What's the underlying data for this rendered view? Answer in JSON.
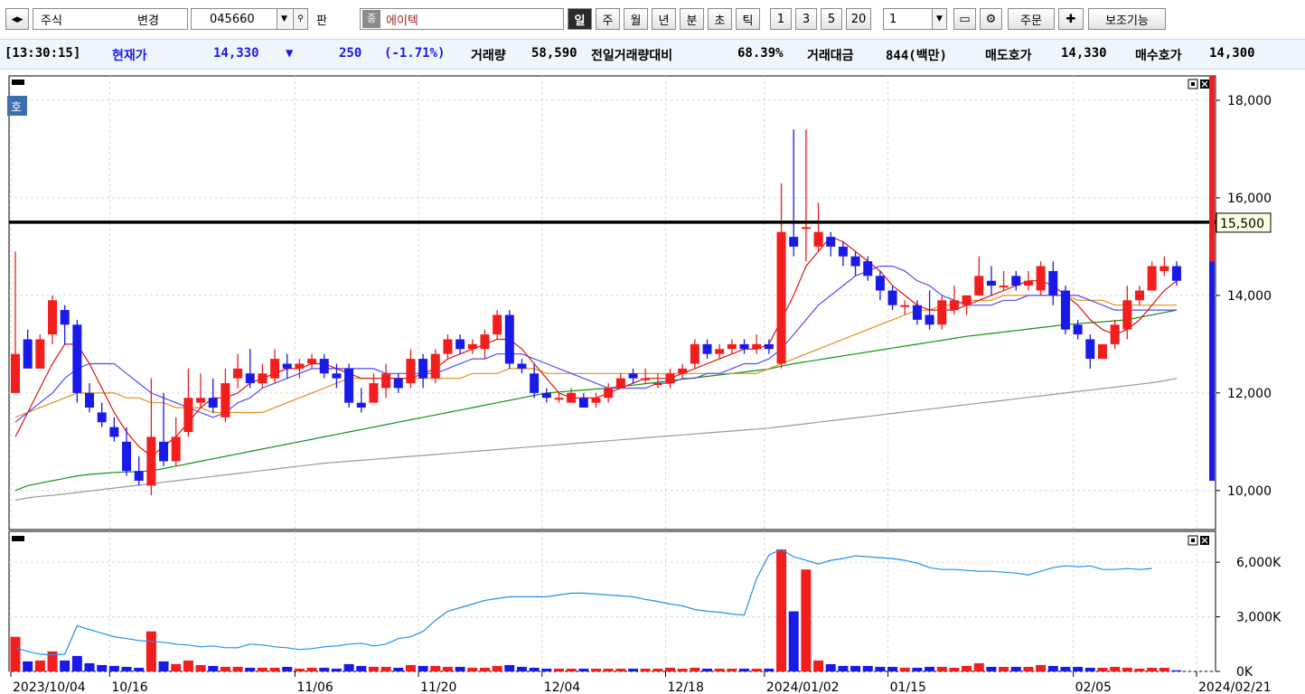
{
  "toolbar": {
    "market_select": "주식",
    "change_label": "변경",
    "code_value": "045660",
    "gwan_label": "판",
    "jong_icon_label": "종",
    "stock_name": "에이텍",
    "period_buttons": [
      "일",
      "주",
      "월",
      "년",
      "분",
      "초",
      "틱"
    ],
    "active_period": "일",
    "interval_buttons": [
      "1",
      "3",
      "5",
      "20"
    ],
    "interval_value": "1",
    "order_label": "주문",
    "aux_label": "보조기능"
  },
  "info": {
    "time": "[13:30:15]",
    "price_label": "현재가",
    "price": "14,330",
    "arrow": "▼",
    "change": "250",
    "change_pct": "(-1.71%)",
    "volume_label": "거래량",
    "volume": "58,590",
    "vol_ratio_label": "전일거래량대비",
    "vol_ratio": "68.39%",
    "amount_label": "거래대금",
    "amount": "844(백만)",
    "ask_label": "매도호가",
    "ask": "14,330",
    "bid_label": "매수호가",
    "bid": "14,300"
  },
  "colors": {
    "up": "#f21d1d",
    "down": "#1a1ae8",
    "ma5": "#e01010",
    "ma10": "#4d4df5",
    "ma20": "#e0901a",
    "ma60": "#159015",
    "ma120": "#9a9a9a",
    "volume_ma": "#1e90e8"
  },
  "chart_data": {
    "type": "candlestick",
    "x_labels": [
      "2023/10/04",
      "10/16",
      "11/06",
      "11/20",
      "12/04",
      "12/18",
      "2024/01/02",
      "01/15",
      "02/05",
      "2024/02/21"
    ],
    "price_axis": {
      "ticks": [
        "10,000",
        "12,000",
        "14,000",
        "16,000",
        "18,000"
      ],
      "range": [
        9200,
        18500
      ]
    },
    "horizontal_line": {
      "value": 15500,
      "label": "15,500"
    },
    "price_panel_tag": "호",
    "volume_axis": {
      "ticks": [
        "0K",
        "3,000K",
        "6,000K"
      ],
      "range": [
        0,
        7000
      ]
    },
    "candles": [
      [
        12,
        12.8,
        14.9,
        12.8,
        1.9
      ],
      [
        13.1,
        12.5,
        13.3,
        12.5,
        0.55
      ],
      [
        12.5,
        13.1,
        13.2,
        12.5,
        0.6
      ],
      [
        13.2,
        13.9,
        14,
        13,
        1.1
      ],
      [
        13.7,
        13.4,
        13.8,
        13,
        0.6
      ],
      [
        13.4,
        12,
        13.5,
        11.8,
        0.85
      ],
      [
        12,
        11.7,
        12.2,
        11.6,
        0.45
      ],
      [
        11.6,
        11.4,
        11.8,
        11.3,
        0.35
      ],
      [
        11.3,
        11.1,
        11.5,
        11,
        0.3
      ],
      [
        11,
        10.4,
        11.3,
        10.3,
        0.25
      ],
      [
        10.4,
        10.2,
        10.7,
        10.1,
        0.2
      ],
      [
        10.1,
        11.1,
        12.3,
        9.9,
        2.2
      ],
      [
        11,
        10.6,
        12,
        10.5,
        0.55
      ],
      [
        10.6,
        11.1,
        11.5,
        10.5,
        0.4
      ],
      [
        11.2,
        11.9,
        12.5,
        11.1,
        0.6
      ],
      [
        11.8,
        11.9,
        12.4,
        11.7,
        0.35
      ],
      [
        11.9,
        11.7,
        12.3,
        11.6,
        0.3
      ],
      [
        11.5,
        12.2,
        12.5,
        11.4,
        0.25
      ],
      [
        12.3,
        12.5,
        12.8,
        12.1,
        0.25
      ],
      [
        12.4,
        12.2,
        12.9,
        12.1,
        0.2
      ],
      [
        12.2,
        12.4,
        12.6,
        12.1,
        0.2
      ],
      [
        12.3,
        12.7,
        12.9,
        12.2,
        0.2
      ],
      [
        12.6,
        12.5,
        12.8,
        12.3,
        0.25
      ],
      [
        12.5,
        12.6,
        12.7,
        12.3,
        0.15
      ],
      [
        12.6,
        12.7,
        12.8,
        12.5,
        0.2
      ],
      [
        12.7,
        12.4,
        12.8,
        12.3,
        0.2
      ],
      [
        12.4,
        12.3,
        12.6,
        12.1,
        0.15
      ],
      [
        12.5,
        11.8,
        12.6,
        11.7,
        0.4
      ],
      [
        11.8,
        11.7,
        12.1,
        11.6,
        0.3
      ],
      [
        11.8,
        12.2,
        12.4,
        11.8,
        0.25
      ],
      [
        12.1,
        12.4,
        12.6,
        11.9,
        0.25
      ],
      [
        12.3,
        12.1,
        12.4,
        12,
        0.2
      ],
      [
        12.2,
        12.7,
        12.9,
        12.1,
        0.35
      ],
      [
        12.7,
        12.3,
        12.8,
        12.1,
        0.3
      ],
      [
        12.3,
        12.8,
        12.9,
        12.2,
        0.3
      ],
      [
        12.8,
        13.1,
        13.2,
        12.7,
        0.25
      ],
      [
        13.1,
        12.9,
        13.2,
        12.8,
        0.25
      ],
      [
        12.9,
        13,
        13.1,
        12.8,
        0.2
      ],
      [
        12.9,
        13.2,
        13.3,
        12.7,
        0.2
      ],
      [
        13.2,
        13.6,
        13.7,
        13.1,
        0.3
      ],
      [
        13.6,
        12.6,
        13.7,
        12.5,
        0.35
      ],
      [
        12.6,
        12.5,
        12.7,
        12.4,
        0.25
      ],
      [
        12.4,
        12,
        12.6,
        11.9,
        0.2
      ],
      [
        12,
        11.9,
        12.1,
        11.8,
        0.15
      ],
      [
        11.9,
        11.9,
        12,
        11.8,
        0.15
      ],
      [
        11.8,
        12,
        12.1,
        11.8,
        0.15
      ],
      [
        11.9,
        11.7,
        12,
        11.7,
        0.15
      ],
      [
        11.8,
        11.9,
        12,
        11.7,
        0.15
      ],
      [
        11.9,
        12.1,
        12.2,
        11.8,
        0.15
      ],
      [
        12.1,
        12.3,
        12.4,
        12.1,
        0.15
      ],
      [
        12.4,
        12.3,
        12.5,
        12.2,
        0.15
      ],
      [
        12.3,
        12.3,
        12.5,
        12.2,
        0.15
      ],
      [
        12.2,
        12.2,
        12.4,
        12.1,
        0.15
      ],
      [
        12.2,
        12.4,
        12.5,
        12.1,
        0.2
      ],
      [
        12.4,
        12.5,
        12.6,
        12.3,
        0.15
      ],
      [
        12.6,
        13,
        13.1,
        12.5,
        0.2
      ],
      [
        13,
        12.8,
        13.1,
        12.7,
        0.15
      ],
      [
        12.8,
        12.9,
        13,
        12.7,
        0.15
      ],
      [
        12.9,
        13,
        13.1,
        12.8,
        0.15
      ],
      [
        13,
        12.9,
        13.1,
        12.8,
        0.15
      ],
      [
        12.9,
        13,
        13.2,
        12.8,
        0.15
      ],
      [
        13,
        12.9,
        13.1,
        12.8,
        0.15
      ],
      [
        12.6,
        15.3,
        16.3,
        12.5,
        6.7
      ],
      [
        15.2,
        15,
        17.4,
        14.8,
        3.3
      ],
      [
        15.4,
        15.4,
        17.4,
        14.7,
        5.6
      ],
      [
        15,
        15.3,
        15.9,
        14.9,
        0.6
      ],
      [
        15.2,
        15,
        15.3,
        14.8,
        0.4
      ],
      [
        15,
        14.8,
        15.1,
        14.6,
        0.3
      ],
      [
        14.8,
        14.6,
        14.9,
        14.4,
        0.3
      ],
      [
        14.7,
        14.4,
        14.8,
        14.3,
        0.3
      ],
      [
        14.4,
        14.1,
        14.5,
        13.9,
        0.25
      ],
      [
        14.1,
        13.8,
        14.2,
        13.7,
        0.25
      ],
      [
        13.8,
        13.8,
        13.9,
        13.6,
        0.2
      ],
      [
        13.8,
        13.5,
        13.9,
        13.4,
        0.2
      ],
      [
        13.6,
        13.4,
        14.1,
        13.3,
        0.25
      ],
      [
        13.4,
        13.9,
        14,
        13.3,
        0.25
      ],
      [
        13.7,
        13.9,
        14.2,
        13.6,
        0.2
      ],
      [
        13.8,
        14,
        14,
        13.6,
        0.3
      ],
      [
        14,
        14.4,
        14.8,
        14,
        0.45
      ],
      [
        14.3,
        14.2,
        14.6,
        14,
        0.25
      ],
      [
        14.2,
        14.2,
        14.5,
        14.1,
        0.25
      ],
      [
        14.4,
        14.2,
        14.5,
        14.1,
        0.25
      ],
      [
        14.2,
        14.3,
        14.5,
        14.1,
        0.25
      ],
      [
        14.1,
        14.6,
        14.7,
        14,
        0.35
      ],
      [
        14.5,
        14,
        14.7,
        13.8,
        0.3
      ],
      [
        14.1,
        13.3,
        14.2,
        13.2,
        0.25
      ],
      [
        13.4,
        13.2,
        13.5,
        13.1,
        0.25
      ],
      [
        13.1,
        12.7,
        13.2,
        12.5,
        0.2
      ],
      [
        12.7,
        13,
        13,
        12.7,
        0.2
      ],
      [
        13,
        13.4,
        13.5,
        12.9,
        0.25
      ],
      [
        13.3,
        13.9,
        14.2,
        13.1,
        0.2
      ],
      [
        13.9,
        14.1,
        14.2,
        13.8,
        0.15
      ],
      [
        14.1,
        14.6,
        14.7,
        14.1,
        0.2
      ],
      [
        14.5,
        14.6,
        14.8,
        14.4,
        0.2
      ],
      [
        14.6,
        14.3,
        14.7,
        14.2,
        0.06
      ]
    ],
    "series": [
      {
        "name": "MA5",
        "values": [
          11.1,
          11.6,
          12.1,
          12.6,
          13,
          13,
          12.6,
          12.1,
          11.6,
          11.2,
          10.9,
          10.7,
          10.9,
          11.1,
          11.4,
          11.7,
          11.9,
          11.9,
          12,
          12.2,
          12.3,
          12.4,
          12.5,
          12.5,
          12.6,
          12.6,
          12.5,
          12.4,
          12.3,
          12.3,
          12.3,
          12.3,
          12.3,
          12.4,
          12.5,
          12.7,
          12.8,
          12.9,
          13,
          13.1,
          13.1,
          12.9,
          12.6,
          12.3,
          12,
          11.9,
          11.9,
          11.9,
          12,
          12.1,
          12.2,
          12.3,
          12.3,
          12.3,
          12.4,
          12.5,
          12.6,
          12.7,
          12.8,
          12.9,
          12.9,
          13,
          13.5,
          14,
          14.6,
          14.9,
          15.2,
          15.1,
          14.9,
          14.7,
          14.5,
          14.2,
          14,
          13.8,
          13.7,
          13.7,
          13.7,
          13.8,
          13.9,
          14,
          14.1,
          14.2,
          14.3,
          14.3,
          14.2,
          14,
          13.8,
          13.5,
          13.3,
          13.2,
          13.3,
          13.5,
          13.8,
          14.1,
          14.3
        ]
      },
      {
        "name": "MA10",
        "values": [
          11.4,
          11.6,
          11.8,
          12,
          12.3,
          12.5,
          12.6,
          12.6,
          12.6,
          12.4,
          12.2,
          12,
          11.9,
          11.8,
          11.7,
          11.6,
          11.5,
          11.6,
          11.8,
          11.9,
          12.1,
          12.2,
          12.3,
          12.4,
          12.5,
          12.5,
          12.5,
          12.5,
          12.5,
          12.5,
          12.4,
          12.4,
          12.4,
          12.4,
          12.4,
          12.5,
          12.6,
          12.7,
          12.7,
          12.8,
          12.8,
          12.8,
          12.7,
          12.6,
          12.5,
          12.4,
          12.3,
          12.2,
          12.1,
          12.1,
          12.1,
          12.1,
          12.2,
          12.2,
          12.3,
          12.3,
          12.4,
          12.4,
          12.5,
          12.6,
          12.6,
          12.7,
          12.9,
          13.2,
          13.5,
          13.8,
          14,
          14.2,
          14.4,
          14.5,
          14.6,
          14.6,
          14.5,
          14.3,
          14.2,
          14,
          13.9,
          13.8,
          13.8,
          13.8,
          13.9,
          13.9,
          14,
          14,
          14,
          14,
          14,
          13.9,
          13.8,
          13.7,
          13.7,
          13.7,
          13.7,
          13.7,
          13.7
        ]
      },
      {
        "name": "MA20",
        "values": [
          11.5,
          11.6,
          11.7,
          11.8,
          11.9,
          12,
          12,
          12,
          12,
          11.9,
          11.9,
          11.8,
          11.8,
          11.7,
          11.7,
          11.7,
          11.6,
          11.6,
          11.6,
          11.6,
          11.6,
          11.7,
          11.8,
          11.9,
          12,
          12.1,
          12.2,
          12.3,
          12.3,
          12.3,
          12.3,
          12.3,
          12.3,
          12.3,
          12.3,
          12.3,
          12.3,
          12.4,
          12.4,
          12.4,
          12.5,
          12.5,
          12.5,
          12.4,
          12.4,
          12.4,
          12.4,
          12.4,
          12.4,
          12.4,
          12.4,
          12.4,
          12.4,
          12.4,
          12.4,
          12.4,
          12.4,
          12.4,
          12.4,
          12.4,
          12.4,
          12.5,
          12.6,
          12.7,
          12.8,
          12.9,
          13,
          13.1,
          13.2,
          13.3,
          13.4,
          13.5,
          13.6,
          13.7,
          13.7,
          13.8,
          13.8,
          13.9,
          13.9,
          13.9,
          14,
          14,
          14,
          14,
          14,
          14,
          13.9,
          13.9,
          13.9,
          13.8,
          13.8,
          13.8,
          13.8,
          13.8,
          13.8
        ]
      },
      {
        "name": "MA60",
        "values": [
          10,
          10.1,
          10.15,
          10.2,
          10.25,
          10.3,
          10.33,
          10.35,
          10.37,
          10.38,
          10.39,
          10.4,
          10.45,
          10.5,
          10.55,
          10.6,
          10.65,
          10.7,
          10.75,
          10.8,
          10.85,
          10.9,
          10.95,
          11,
          11.05,
          11.1,
          11.15,
          11.2,
          11.25,
          11.3,
          11.35,
          11.4,
          11.45,
          11.5,
          11.55,
          11.6,
          11.65,
          11.7,
          11.75,
          11.8,
          11.85,
          11.9,
          11.95,
          12,
          12.02,
          12.04,
          12.06,
          12.08,
          12.1,
          12.13,
          12.16,
          12.19,
          12.22,
          12.25,
          12.28,
          12.31,
          12.34,
          12.37,
          12.4,
          12.43,
          12.46,
          12.49,
          12.55,
          12.6,
          12.64,
          12.68,
          12.72,
          12.76,
          12.8,
          12.84,
          12.88,
          12.92,
          12.96,
          13,
          13.04,
          13.08,
          13.12,
          13.16,
          13.19,
          13.22,
          13.25,
          13.28,
          13.31,
          13.34,
          13.37,
          13.4,
          13.42,
          13.44,
          13.46,
          13.48,
          13.5,
          13.55,
          13.6,
          13.65,
          13.7
        ]
      },
      {
        "name": "MA120",
        "values": [
          9.8,
          9.85,
          9.88,
          9.9,
          9.93,
          9.96,
          9.99,
          10.02,
          10.05,
          10.08,
          10.11,
          10.14,
          10.17,
          10.2,
          10.23,
          10.26,
          10.29,
          10.32,
          10.35,
          10.38,
          10.41,
          10.44,
          10.47,
          10.5,
          10.53,
          10.56,
          10.58,
          10.6,
          10.62,
          10.64,
          10.66,
          10.68,
          10.7,
          10.72,
          10.74,
          10.76,
          10.78,
          10.8,
          10.82,
          10.84,
          10.86,
          10.88,
          10.9,
          10.92,
          10.94,
          10.96,
          10.98,
          11,
          11.02,
          11.04,
          11.06,
          11.08,
          11.1,
          11.12,
          11.14,
          11.16,
          11.18,
          11.2,
          11.22,
          11.24,
          11.26,
          11.28,
          11.31,
          11.34,
          11.37,
          11.4,
          11.43,
          11.46,
          11.49,
          11.52,
          11.55,
          11.58,
          11.61,
          11.64,
          11.67,
          11.7,
          11.73,
          11.76,
          11.79,
          11.82,
          11.85,
          11.88,
          11.91,
          11.94,
          11.97,
          12,
          12.03,
          12.06,
          12.09,
          12.12,
          12.15,
          12.18,
          12.21,
          12.25,
          12.3
        ]
      },
      {
        "name": "Volume MA",
        "values": [
          1.3,
          1.1,
          0.95,
          0.9,
          0.95,
          2.5,
          2.3,
          2.1,
          1.9,
          1.8,
          1.7,
          1.65,
          1.6,
          1.5,
          1.45,
          1.35,
          1.4,
          1.3,
          1.3,
          1.5,
          1.45,
          1.35,
          1.3,
          1.2,
          1.25,
          1.35,
          1.4,
          1.5,
          1.55,
          1.4,
          1.5,
          1.8,
          1.9,
          2.2,
          2.8,
          3.3,
          3.5,
          3.7,
          3.9,
          4,
          4.1,
          4.1,
          4.1,
          4.1,
          4.2,
          4.3,
          4.3,
          4.25,
          4.2,
          4.15,
          4.1,
          3.95,
          3.85,
          3.7,
          3.6,
          3.4,
          3.3,
          3.25,
          3.15,
          3.1,
          5.1,
          6.4,
          6.7,
          6.3,
          6.1,
          5.9,
          6.1,
          6.2,
          6.35,
          6.3,
          6.25,
          6.2,
          6.1,
          5.95,
          5.7,
          5.6,
          5.6,
          5.55,
          5.5,
          5.5,
          5.45,
          5.4,
          5.3,
          5.5,
          5.7,
          5.8,
          5.75,
          5.8,
          5.6,
          5.6,
          5.65,
          5.6,
          5.65
        ]
      }
    ]
  }
}
